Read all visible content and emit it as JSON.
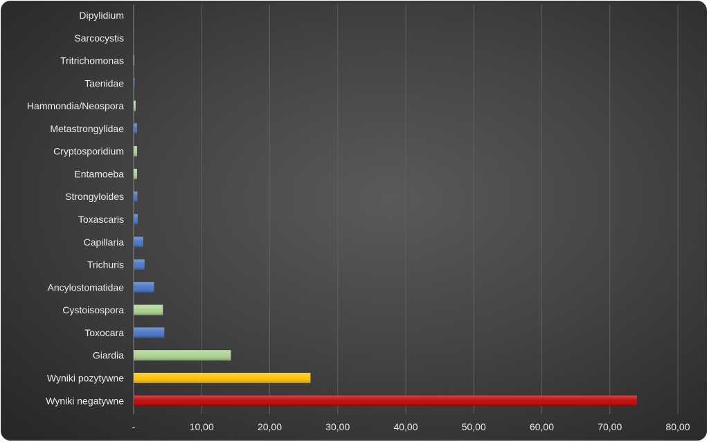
{
  "chart_data": {
    "type": "bar",
    "orientation": "horizontal",
    "categories": [
      "Dipylidium",
      "Sarcocystis",
      "Tritrichomonas",
      "Taenidae",
      "Hammondia/Neospora",
      "Metastrongylidae",
      "Cryptosporidium",
      "Entamoeba",
      "Strongyloides",
      "Toxascaris",
      "Capillaria",
      "Trichuris",
      "Ancylostomatidae",
      "Cystoisospora",
      "Toxocara",
      "Giardia",
      "Wyniki pozytywne",
      "Wyniki negatywne"
    ],
    "values": [
      0.0,
      0.05,
      0.1,
      0.15,
      0.3,
      0.5,
      0.5,
      0.5,
      0.55,
      0.6,
      1.4,
      1.6,
      3.0,
      4.3,
      4.5,
      14.3,
      26.0,
      74.0
    ],
    "bar_colors": [
      "#4472c4",
      "#4472c4",
      "#a9d18e",
      "#4472c4",
      "#a9d18e",
      "#4472c4",
      "#a9d18e",
      "#a9d18e",
      "#4472c4",
      "#4472c4",
      "#4472c4",
      "#4472c4",
      "#4472c4",
      "#a9d18e",
      "#4472c4",
      "#a9d18e",
      "#ffc000",
      "#c00000"
    ],
    "xlim": [
      0,
      80
    ],
    "x_ticks": [
      0,
      10,
      20,
      30,
      40,
      50,
      60,
      70,
      80
    ],
    "x_tick_labels": [
      "-",
      "10,00",
      "20,00",
      "30,00",
      "40,00",
      "50,00",
      "60,00",
      "70,00",
      "80,00"
    ],
    "grid": "vertical",
    "title": "",
    "xlabel": "",
    "ylabel": "",
    "colors": {
      "background": "#3c3c3c",
      "gridline": "#5e5e5e",
      "text": "#ececec"
    }
  }
}
